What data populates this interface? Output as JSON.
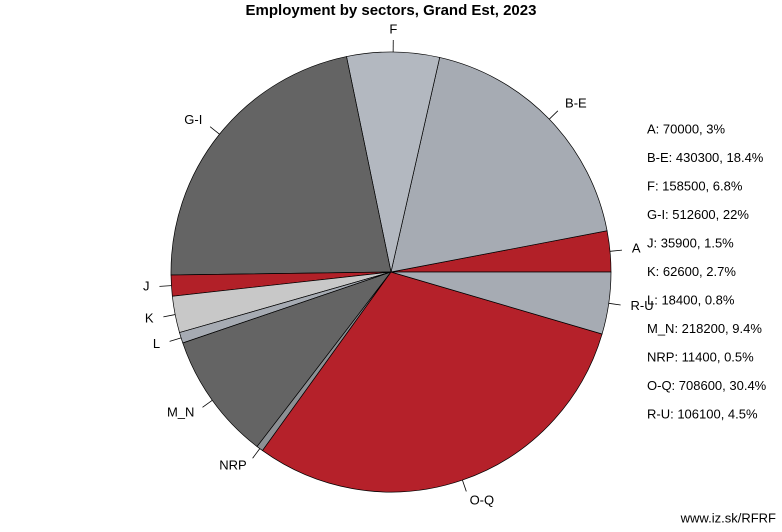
{
  "chart_data": {
    "type": "pie",
    "title": "Employment by sectors, Grand Est, 2023",
    "categories": [
      "A",
      "B-E",
      "F",
      "G-I",
      "J",
      "K",
      "L",
      "M_N",
      "NRP",
      "O-Q",
      "R-U"
    ],
    "values": [
      70000,
      430300,
      158500,
      512600,
      35900,
      62600,
      18400,
      218200,
      11400,
      708600,
      106100
    ],
    "colors": [
      "#b22028",
      "#a6abb3",
      "#b3b8c0",
      "#646464",
      "#b22028",
      "#c8c8c8",
      "#a6abb3",
      "#646464",
      "#8c9094",
      "#b5212a",
      "#a6abb3"
    ],
    "legend_labels": [
      "A: 70000, 3%",
      "B-E: 430300, 18.4%",
      "F: 158500, 6.8%",
      "G-I: 512600, 22%",
      "J: 35900, 1.5%",
      "K: 62600, 2.7%",
      "L: 18400, 0.8%",
      "M_N: 218200, 9.4%",
      "NRP: 11400, 0.5%",
      "O-Q: 708600, 30.4%",
      "R-U: 106100, 4.5%"
    ],
    "source": "www.iz.sk/RFRF"
  }
}
